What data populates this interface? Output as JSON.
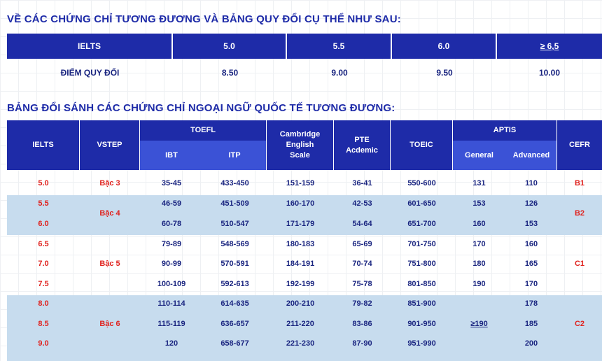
{
  "title1": "VỀ CÁC CHỨNG CHỈ TƯƠNG ĐƯƠNG VÀ BẢNG QUY ĐỔI CỤ THỂ NHƯ SAU:",
  "table1": {
    "headers": [
      "IELTS",
      "5.0",
      "5.5",
      "6.0",
      "≥ 6,5"
    ],
    "row": [
      "ĐIỂM QUY ĐỔI",
      "8.50",
      "9.00",
      "9.50",
      "10.00"
    ]
  },
  "title2": "BẢNG ĐỔI SÁNH CÁC CHỨNG CHỈ NGOẠI NGỮ QUỐC TẾ TƯƠNG ĐƯƠNG:",
  "table2": {
    "headers": {
      "ielts": "IELTS",
      "vstep": "VSTEP",
      "toefl": "TOEFL",
      "ibt": "IBT",
      "itp": "ITP",
      "cambridge": "Cambridge English Scale",
      "pte": "PTE Acdemic",
      "toeic": "TOEIC",
      "aptis": "APTIS",
      "general": "General",
      "advanced": "Advanced",
      "cefr": "CEFR"
    },
    "rows": [
      {
        "ielts": "5.0",
        "ibt": "35-45",
        "itp": "433-450",
        "cambridge": "151-159",
        "pte": "36-41",
        "toeic": "550-600",
        "general": "131",
        "advanced": "110"
      },
      {
        "ielts": "5.5",
        "ibt": "46-59",
        "itp": "451-509",
        "cambridge": "160-170",
        "pte": "42-53",
        "toeic": "601-650",
        "general": "153",
        "advanced": "126"
      },
      {
        "ielts": "6.0",
        "ibt": "60-78",
        "itp": "510-547",
        "cambridge": "171-179",
        "pte": "54-64",
        "toeic": "651-700",
        "general": "160",
        "advanced": "153"
      },
      {
        "ielts": "6.5",
        "ibt": "79-89",
        "itp": "548-569",
        "cambridge": "180-183",
        "pte": "65-69",
        "toeic": "701-750",
        "general": "170",
        "advanced": "160"
      },
      {
        "ielts": "7.0",
        "ibt": "90-99",
        "itp": "570-591",
        "cambridge": "184-191",
        "pte": "70-74",
        "toeic": "751-800",
        "general": "180",
        "advanced": "165"
      },
      {
        "ielts": "7.5",
        "ibt": "100-109",
        "itp": "592-613",
        "cambridge": "192-199",
        "pte": "75-78",
        "toeic": "801-850",
        "general": "190",
        "advanced": "170"
      },
      {
        "ielts": "8.0",
        "ibt": "110-114",
        "itp": "614-635",
        "cambridge": "200-210",
        "pte": "79-82",
        "toeic": "851-900",
        "general": "",
        "advanced": "178"
      },
      {
        "ielts": "8.5",
        "ibt": "115-119",
        "itp": "636-657",
        "cambridge": "211-220",
        "pte": "83-86",
        "toeic": "901-950",
        "general": "",
        "advanced": "185"
      },
      {
        "ielts": "9.0",
        "ibt": "120",
        "itp": "658-677",
        "cambridge": "221-230",
        "pte": "87-90",
        "toeic": "951-990",
        "general": "",
        "advanced": "200"
      }
    ],
    "vstep_groups": [
      "Bậc 3",
      "Bậc 4",
      "Bậc 5",
      "Bậc 6"
    ],
    "cefr_groups": [
      "B1",
      "B2",
      "C1",
      "C2"
    ],
    "aptis_general_merged": "≥190",
    "colors": {
      "header": "#1e2ba8",
      "subheader": "#3b52d6",
      "band": "#c7dcee",
      "accent_red": "#e0231f"
    }
  }
}
